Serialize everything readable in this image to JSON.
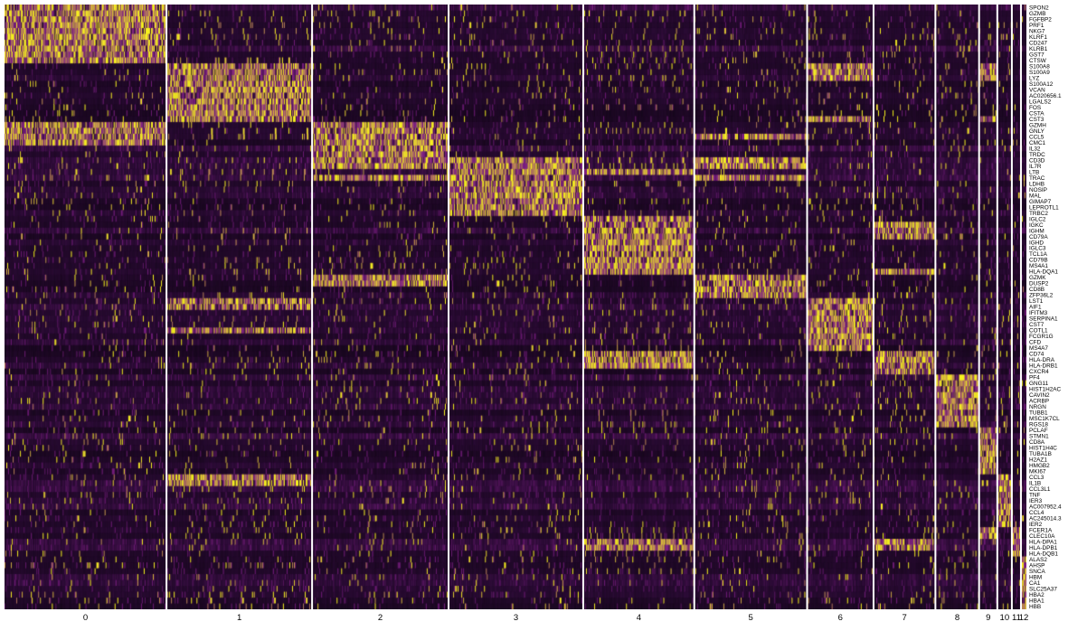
{
  "chart_data": {
    "type": "heatmap",
    "title": "",
    "xlabel": "",
    "ylabel": "",
    "colors": {
      "low": "#2a0b34",
      "mid": "#7f1f86",
      "high": "#f7f21f",
      "separator": "#ffffff"
    },
    "color_scale": "purple-black-yellow (scaled expression)",
    "legend": "none",
    "clusters": [
      {
        "label": "0",
        "cells": 178
      },
      {
        "label": "1",
        "cells": 160
      },
      {
        "label": "2",
        "cells": 150
      },
      {
        "label": "3",
        "cells": 148
      },
      {
        "label": "4",
        "cells": 122
      },
      {
        "label": "5",
        "cells": 124
      },
      {
        "label": "6",
        "cells": 73
      },
      {
        "label": "7",
        "cells": 68
      },
      {
        "label": "8",
        "cells": 48
      },
      {
        "label": "9",
        "cells": 20
      },
      {
        "label": "10",
        "cells": 16
      },
      {
        "label": "11",
        "cells": 10
      },
      {
        "label": "12",
        "cells": 6
      }
    ],
    "genes": [
      "SPON2",
      "GZMB",
      "FGFBP2",
      "PRF1",
      "NKG7",
      "KLRF1",
      "CD247",
      "KLRB1",
      "GST7",
      "CTSW",
      "S100A8",
      "S100A9",
      "LYZ",
      "S100A12",
      "VCAN",
      "AC020656.1",
      "LGALS2",
      "FOS",
      "CSTA",
      "CST3",
      "GZMH",
      "GNLY",
      "CCL5",
      "CMC1",
      "IL32",
      "TRDC",
      "CD3D",
      "IL7R",
      "LTB",
      "TRAC",
      "LDHB",
      "NOSIP",
      "MAL",
      "GIMAP7",
      "LEPROTL1",
      "TRBC2",
      "IGLC2",
      "IGKC",
      "IGHM",
      "CD79A",
      "IGHD",
      "IGLC3",
      "TCL1A",
      "CD79B",
      "MS4A1",
      "HLA-DQA1",
      "GZMK",
      "DUSP2",
      "CD8B",
      "ZFP36L2",
      "LST1",
      "AIF1",
      "IFITM3",
      "SERPINA1",
      "CST7",
      "COTL1",
      "FCGR1G",
      "CFD",
      "MS4A7",
      "CD74",
      "HLA-DRA",
      "HLA-DRB1",
      "CXCR4",
      "PF4",
      "GNG11",
      "HIST1H2AC",
      "CAVIN2",
      "ACRBP",
      "NRGN",
      "TUBB1",
      "MSC1K7CL",
      "RGS18",
      "PCLAF",
      "STMN1",
      "CD8A",
      "HIST1H4C",
      "TUBA1B",
      "H2AZ1",
      "HMGB2",
      "MKI67",
      "CCL3",
      "IL1B",
      "CCL3L1",
      "TNF",
      "IER3",
      "AC007952.4",
      "CCL4",
      "AC245014.3",
      "IER2",
      "FCER1A",
      "CLEC10A",
      "HLA-DPA1",
      "HLA-DPB1",
      "HLA-DQB1",
      "ALAS2",
      "AHSP",
      "SNCA",
      "HBM",
      "CA1",
      "SLC25A37",
      "HBA2",
      "HBA1",
      "HBB"
    ],
    "marker_blocks": [
      {
        "cluster": "0",
        "genes": [
          "SPON2",
          "GZMB",
          "FGFBP2",
          "PRF1",
          "NKG7",
          "KLRF1",
          "CD247",
          "KLRB1",
          "GST7",
          "CTSW"
        ]
      },
      {
        "cluster": "1",
        "genes": [
          "S100A8",
          "S100A9",
          "LYZ",
          "S100A12",
          "VCAN",
          "AC020656.1",
          "LGALS2",
          "FOS",
          "CSTA",
          "CST3"
        ]
      },
      {
        "cluster": "2",
        "genes": [
          "GZMH",
          "GNLY",
          "CCL5",
          "CMC1",
          "IL32",
          "TRDC"
        ]
      },
      {
        "cluster": "3",
        "genes": [
          "CD3D",
          "IL7R",
          "LTB",
          "TRAC",
          "LDHB",
          "NOSIP",
          "MAL",
          "GIMAP7",
          "LEPROTL1",
          "TRBC2"
        ]
      },
      {
        "cluster": "4",
        "genes": [
          "IGLC2",
          "IGKC",
          "IGHM",
          "CD79A",
          "IGHD",
          "IGLC3",
          "TCL1A",
          "CD79B",
          "MS4A1",
          "HLA-DQA1"
        ]
      },
      {
        "cluster": "5",
        "genes": [
          "GZMK",
          "DUSP2",
          "CD8B",
          "ZFP36L2"
        ]
      },
      {
        "cluster": "6",
        "genes": [
          "LST1",
          "AIF1",
          "IFITM3",
          "SERPINA1",
          "CST7",
          "COTL1",
          "FCGR1G",
          "CFD",
          "MS4A7"
        ]
      },
      {
        "cluster": "7",
        "genes": [
          "CD74",
          "HLA-DRA",
          "HLA-DRB1",
          "CXCR4"
        ]
      },
      {
        "cluster": "8",
        "genes": [
          "PF4",
          "GNG11",
          "HIST1H2AC",
          "CAVIN2",
          "ACRBP",
          "NRGN",
          "TUBB1",
          "MSC1K7CL",
          "RGS18"
        ]
      },
      {
        "cluster": "9",
        "genes": [
          "PCLAF",
          "STMN1",
          "CD8A",
          "HIST1H4C",
          "TUBA1B",
          "H2AZ1",
          "HMGB2",
          "MKI67"
        ]
      },
      {
        "cluster": "10",
        "genes": [
          "CCL3",
          "IL1B",
          "CCL3L1",
          "TNF",
          "IER3",
          "AC007952.4",
          "CCL4",
          "AC245014.3",
          "IER2"
        ]
      },
      {
        "cluster": "11",
        "genes": [
          "FCER1A",
          "CLEC10A",
          "HLA-DPA1",
          "HLA-DPB1",
          "HLA-DQB1"
        ]
      },
      {
        "cluster": "12",
        "genes": [
          "ALAS2",
          "AHSP",
          "SNCA",
          "HBM",
          "CA1",
          "SLC25A37",
          "HBA2",
          "HBA1",
          "HBB"
        ]
      }
    ],
    "shared_high": {
      "GZMH": [
        "0",
        "2"
      ],
      "GNLY": [
        "0",
        "2"
      ],
      "CCL5": [
        "0",
        "2",
        "5"
      ],
      "CMC1": [
        "0",
        "2"
      ],
      "CD3D": [
        "2",
        "3",
        "5"
      ],
      "IL7R": [
        "2",
        "3",
        "5"
      ],
      "LTB": [
        "3",
        "4"
      ],
      "TRAC": [
        "2",
        "3",
        "5"
      ],
      "CD74": [
        "4",
        "7"
      ],
      "HLA-DRA": [
        "4",
        "7"
      ],
      "HLA-DRB1": [
        "4",
        "7"
      ],
      "HLA-DPA1": [
        "4",
        "7"
      ],
      "HLA-DPB1": [
        "4",
        "7"
      ],
      "HLA-DQA1": [
        "4",
        "7"
      ],
      "GZMK": [
        "5",
        "2"
      ],
      "DUSP2": [
        "5",
        "2"
      ],
      "S100A8": [
        "1",
        "6",
        "9"
      ],
      "S100A9": [
        "1",
        "6",
        "9"
      ],
      "LYZ": [
        "1",
        "6",
        "9"
      ],
      "CST3": [
        "1",
        "6",
        "9"
      ],
      "FCER1A": [
        "9"
      ],
      "CLEC10A": [
        "9"
      ],
      "AIF1": [
        "6",
        "1"
      ],
      "LST1": [
        "6",
        "1"
      ],
      "COTL1": [
        "6",
        "1"
      ],
      "IGHM": [
        "4",
        "7"
      ],
      "IGKC": [
        "4",
        "7"
      ],
      "CD79A": [
        "4",
        "7"
      ],
      "CCL3": [
        "10",
        "1"
      ],
      "IL1B": [
        "10",
        "1"
      ],
      "TNF": [
        "10"
      ],
      "HBB": [
        "12"
      ],
      "HBA1": [
        "12"
      ],
      "HBA2": [
        "12"
      ]
    }
  }
}
